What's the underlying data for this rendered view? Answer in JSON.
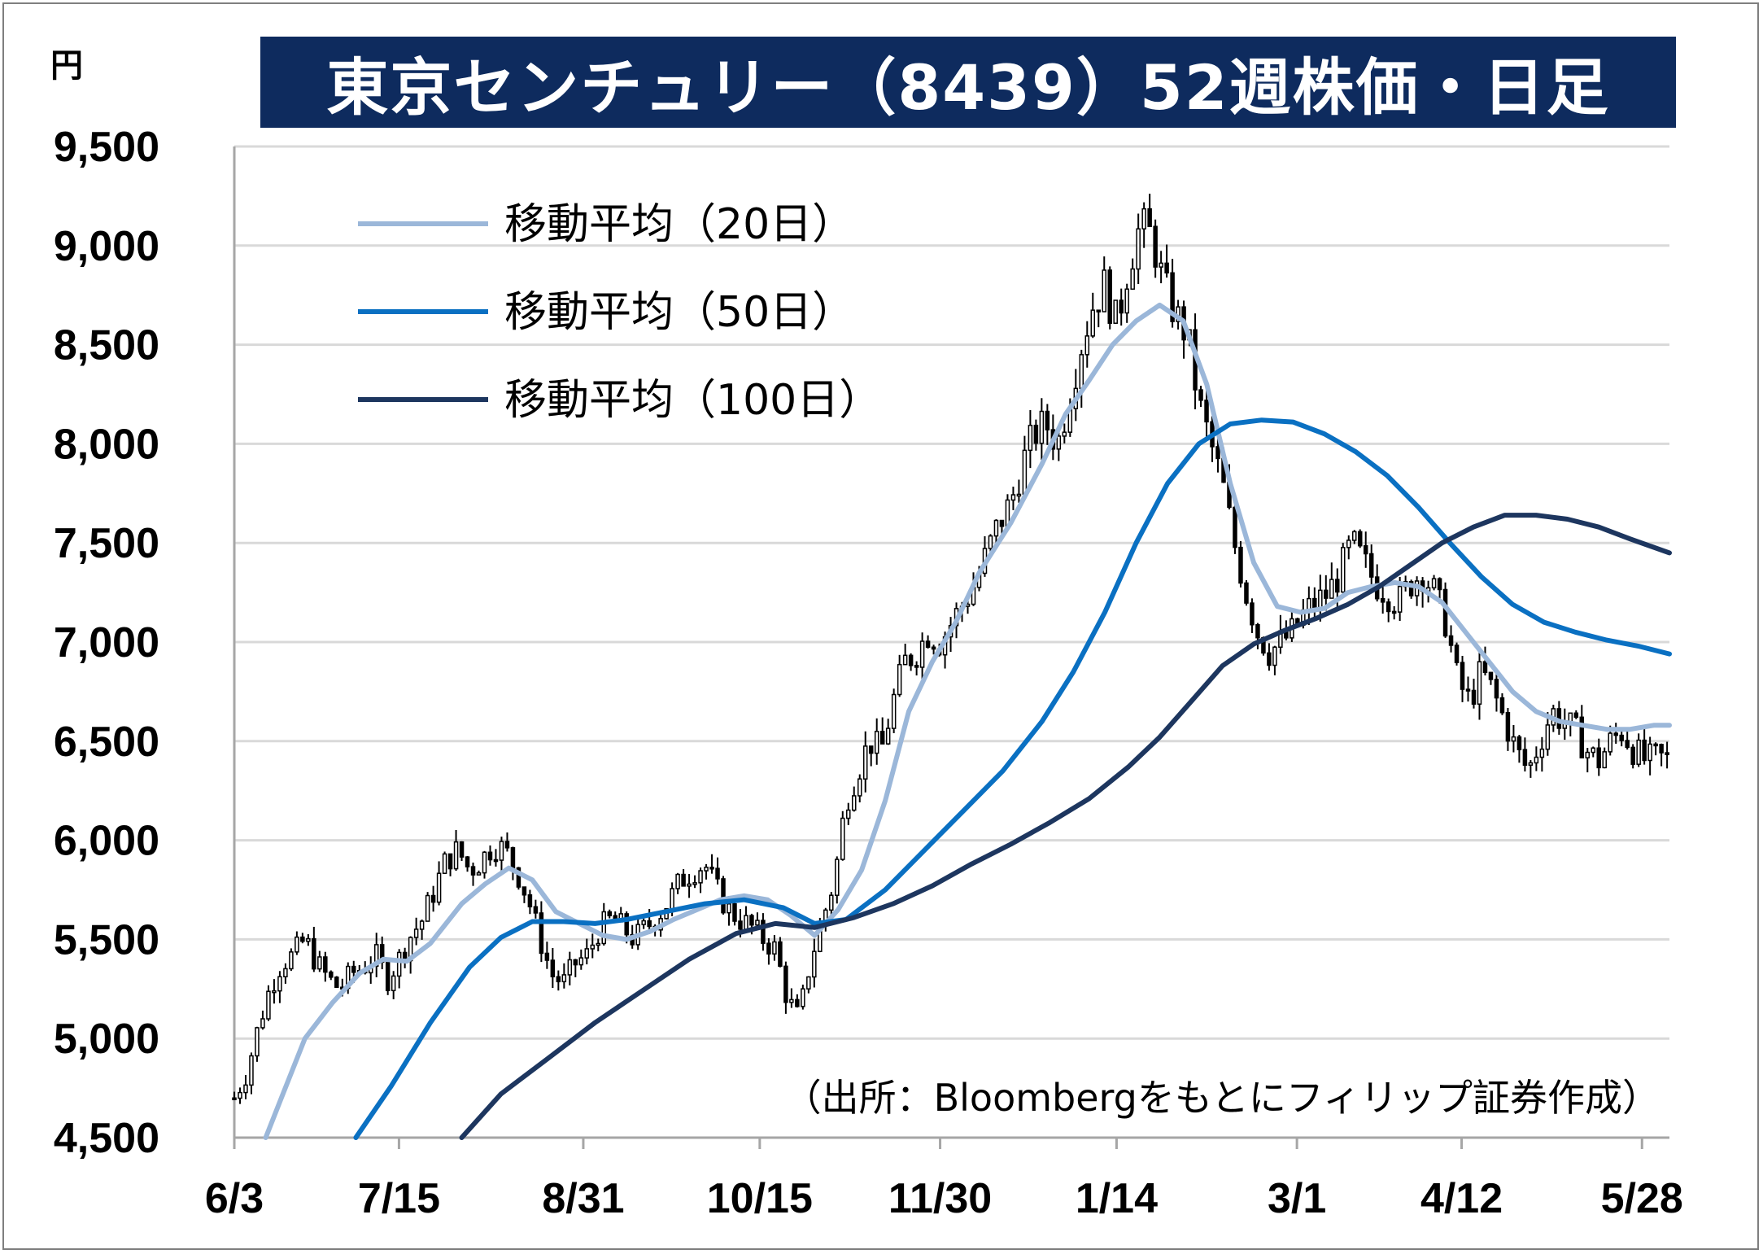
{
  "title": "東京センチュリー（8439）52週株価・日足",
  "unit_label": "円",
  "source": "（出所：Bloombergをもとにフィリップ証券作成）",
  "colors": {
    "title_bg": "#0e2b5e",
    "ma20": "#9bb7d9",
    "ma50": "#0a70c2",
    "ma100": "#1d365f",
    "candle": "#000000",
    "grid": "#d9d9d9",
    "axis": "#a6a6a6"
  },
  "chart_data": {
    "type": "candlestick",
    "ylim": [
      4500,
      9500
    ],
    "yticks": [
      4500,
      5000,
      5500,
      6000,
      6500,
      7000,
      7500,
      8000,
      8500,
      9000,
      9500
    ],
    "ytick_labels": [
      "4,500",
      "5,000",
      "5,500",
      "6,000",
      "6,500",
      "7,000",
      "7,500",
      "8,000",
      "8,500",
      "9,000",
      "9,500"
    ],
    "xlim_days": 366,
    "xticks": [
      {
        "label": "6/3",
        "day": 0
      },
      {
        "label": "7/15",
        "day": 42
      },
      {
        "label": "8/31",
        "day": 89
      },
      {
        "label": "10/15",
        "day": 134
      },
      {
        "label": "11/30",
        "day": 180
      },
      {
        "label": "1/14",
        "day": 225
      },
      {
        "label": "3/1",
        "day": 271
      },
      {
        "label": "4/12",
        "day": 313
      },
      {
        "label": "5/28",
        "day": 359
      }
    ],
    "legend": [
      {
        "key": "ma20",
        "label": "移動平均（20日）"
      },
      {
        "key": "ma50",
        "label": "移動平均（50日）"
      },
      {
        "key": "ma100",
        "label": "移動平均（100日）"
      }
    ],
    "series": [
      {
        "name": "移動平均（20日）",
        "key": "ma20",
        "points": [
          [
            8,
            4500
          ],
          [
            12,
            4700
          ],
          [
            18,
            5000
          ],
          [
            25,
            5180
          ],
          [
            32,
            5330
          ],
          [
            38,
            5400
          ],
          [
            44,
            5390
          ],
          [
            50,
            5480
          ],
          [
            58,
            5680
          ],
          [
            64,
            5780
          ],
          [
            70,
            5860
          ],
          [
            76,
            5800
          ],
          [
            82,
            5640
          ],
          [
            88,
            5580
          ],
          [
            94,
            5520
          ],
          [
            100,
            5500
          ],
          [
            106,
            5540
          ],
          [
            112,
            5600
          ],
          [
            118,
            5650
          ],
          [
            124,
            5700
          ],
          [
            130,
            5720
          ],
          [
            136,
            5700
          ],
          [
            142,
            5620
          ],
          [
            148,
            5520
          ],
          [
            154,
            5650
          ],
          [
            160,
            5850
          ],
          [
            166,
            6200
          ],
          [
            172,
            6650
          ],
          [
            178,
            6900
          ],
          [
            184,
            7100
          ],
          [
            190,
            7350
          ],
          [
            198,
            7600
          ],
          [
            206,
            7900
          ],
          [
            212,
            8150
          ],
          [
            218,
            8320
          ],
          [
            224,
            8500
          ],
          [
            230,
            8620
          ],
          [
            236,
            8700
          ],
          [
            242,
            8620
          ],
          [
            248,
            8300
          ],
          [
            254,
            7800
          ],
          [
            260,
            7400
          ],
          [
            266,
            7180
          ],
          [
            272,
            7150
          ],
          [
            278,
            7170
          ],
          [
            284,
            7250
          ],
          [
            290,
            7280
          ],
          [
            296,
            7300
          ],
          [
            302,
            7280
          ],
          [
            308,
            7200
          ],
          [
            314,
            7050
          ],
          [
            320,
            6900
          ],
          [
            326,
            6750
          ],
          [
            332,
            6650
          ],
          [
            338,
            6600
          ],
          [
            344,
            6580
          ],
          [
            350,
            6560
          ],
          [
            356,
            6560
          ],
          [
            362,
            6580
          ],
          [
            366,
            6580
          ]
        ]
      },
      {
        "name": "移動平均（50日）",
        "key": "ma50",
        "points": [
          [
            31,
            4500
          ],
          [
            40,
            4760
          ],
          [
            50,
            5080
          ],
          [
            60,
            5360
          ],
          [
            68,
            5510
          ],
          [
            76,
            5590
          ],
          [
            84,
            5590
          ],
          [
            92,
            5580
          ],
          [
            100,
            5600
          ],
          [
            110,
            5640
          ],
          [
            120,
            5680
          ],
          [
            130,
            5700
          ],
          [
            140,
            5660
          ],
          [
            148,
            5580
          ],
          [
            156,
            5600
          ],
          [
            166,
            5750
          ],
          [
            176,
            5950
          ],
          [
            186,
            6150
          ],
          [
            196,
            6350
          ],
          [
            206,
            6600
          ],
          [
            214,
            6850
          ],
          [
            222,
            7150
          ],
          [
            230,
            7500
          ],
          [
            238,
            7800
          ],
          [
            246,
            8000
          ],
          [
            254,
            8100
          ],
          [
            262,
            8120
          ],
          [
            270,
            8110
          ],
          [
            278,
            8050
          ],
          [
            286,
            7960
          ],
          [
            294,
            7840
          ],
          [
            302,
            7680
          ],
          [
            310,
            7500
          ],
          [
            318,
            7330
          ],
          [
            326,
            7190
          ],
          [
            334,
            7100
          ],
          [
            342,
            7050
          ],
          [
            350,
            7010
          ],
          [
            358,
            6980
          ],
          [
            366,
            6940
          ]
        ]
      },
      {
        "name": "移動平均（100日）",
        "key": "ma100",
        "points": [
          [
            58,
            4500
          ],
          [
            68,
            4720
          ],
          [
            80,
            4900
          ],
          [
            92,
            5080
          ],
          [
            104,
            5240
          ],
          [
            116,
            5400
          ],
          [
            128,
            5530
          ],
          [
            138,
            5580
          ],
          [
            148,
            5560
          ],
          [
            158,
            5610
          ],
          [
            168,
            5680
          ],
          [
            178,
            5770
          ],
          [
            188,
            5880
          ],
          [
            198,
            5980
          ],
          [
            208,
            6090
          ],
          [
            218,
            6210
          ],
          [
            228,
            6370
          ],
          [
            236,
            6520
          ],
          [
            244,
            6700
          ],
          [
            252,
            6880
          ],
          [
            260,
            6990
          ],
          [
            268,
            7060
          ],
          [
            276,
            7120
          ],
          [
            284,
            7190
          ],
          [
            292,
            7280
          ],
          [
            300,
            7390
          ],
          [
            308,
            7500
          ],
          [
            316,
            7580
          ],
          [
            324,
            7640
          ],
          [
            332,
            7640
          ],
          [
            340,
            7620
          ],
          [
            348,
            7580
          ],
          [
            356,
            7520
          ],
          [
            366,
            7450
          ]
        ]
      }
    ],
    "candles_ohlc_from": "reconstructed daily price path (close values)",
    "price_path": [
      [
        0,
        4700
      ],
      [
        3,
        4820
      ],
      [
        6,
        5050
      ],
      [
        9,
        5250
      ],
      [
        12,
        5380
      ],
      [
        15,
        5420
      ],
      [
        18,
        5500
      ],
      [
        21,
        5380
      ],
      [
        24,
        5300
      ],
      [
        27,
        5250
      ],
      [
        30,
        5330
      ],
      [
        33,
        5360
      ],
      [
        36,
        5420
      ],
      [
        39,
        5300
      ],
      [
        42,
        5400
      ],
      [
        45,
        5520
      ],
      [
        48,
        5600
      ],
      [
        51,
        5750
      ],
      [
        54,
        5900
      ],
      [
        57,
        5950
      ],
      [
        60,
        5850
      ],
      [
        63,
        5900
      ],
      [
        66,
        5980
      ],
      [
        69,
        5950
      ],
      [
        72,
        5850
      ],
      [
        75,
        5700
      ],
      [
        78,
        5500
      ],
      [
        81,
        5320
      ],
      [
        84,
        5280
      ],
      [
        87,
        5380
      ],
      [
        90,
        5420
      ],
      [
        93,
        5550
      ],
      [
        96,
        5600
      ],
      [
        99,
        5560
      ],
      [
        102,
        5500
      ],
      [
        105,
        5560
      ],
      [
        108,
        5620
      ],
      [
        111,
        5700
      ],
      [
        114,
        5800
      ],
      [
        117,
        5850
      ],
      [
        120,
        5880
      ],
      [
        123,
        5750
      ],
      [
        126,
        5650
      ],
      [
        129,
        5600
      ],
      [
        132,
        5560
      ],
      [
        135,
        5500
      ],
      [
        138,
        5450
      ],
      [
        141,
        5200
      ],
      [
        144,
        5100
      ],
      [
        147,
        5400
      ],
      [
        150,
        5600
      ],
      [
        153,
        5800
      ],
      [
        156,
        6200
      ],
      [
        159,
        6350
      ],
      [
        162,
        6500
      ],
      [
        165,
        6450
      ],
      [
        168,
        6700
      ],
      [
        171,
        6900
      ],
      [
        174,
        6950
      ],
      [
        177,
        7050
      ],
      [
        180,
        7000
      ],
      [
        183,
        7100
      ],
      [
        186,
        7200
      ],
      [
        189,
        7300
      ],
      [
        192,
        7450
      ],
      [
        195,
        7600
      ],
      [
        198,
        7700
      ],
      [
        201,
        7900
      ],
      [
        204,
        8050
      ],
      [
        207,
        8100
      ],
      [
        210,
        8000
      ],
      [
        213,
        8250
      ],
      [
        216,
        8500
      ],
      [
        219,
        8700
      ],
      [
        222,
        8800
      ],
      [
        225,
        8600
      ],
      [
        228,
        8900
      ],
      [
        231,
        9100
      ],
      [
        234,
        9050
      ],
      [
        237,
        8800
      ],
      [
        240,
        8650
      ],
      [
        243,
        8550
      ],
      [
        246,
        8200
      ],
      [
        249,
        8000
      ],
      [
        252,
        7800
      ],
      [
        255,
        7500
      ],
      [
        258,
        7250
      ],
      [
        261,
        7050
      ],
      [
        264,
        6950
      ],
      [
        267,
        7000
      ],
      [
        270,
        7050
      ],
      [
        273,
        7150
      ],
      [
        276,
        7200
      ],
      [
        279,
        7250
      ],
      [
        282,
        7350
      ],
      [
        285,
        7500
      ],
      [
        288,
        7400
      ],
      [
        291,
        7300
      ],
      [
        294,
        7250
      ],
      [
        297,
        7200
      ],
      [
        300,
        7300
      ],
      [
        303,
        7350
      ],
      [
        306,
        7250
      ],
      [
        309,
        7100
      ],
      [
        312,
        6800
      ],
      [
        315,
        6700
      ],
      [
        318,
        6850
      ],
      [
        321,
        6750
      ],
      [
        324,
        6600
      ],
      [
        327,
        6450
      ],
      [
        330,
        6350
      ],
      [
        333,
        6500
      ],
      [
        336,
        6650
      ],
      [
        339,
        6600
      ],
      [
        342,
        6550
      ],
      [
        345,
        6450
      ],
      [
        348,
        6400
      ],
      [
        351,
        6500
      ],
      [
        354,
        6550
      ],
      [
        357,
        6450
      ],
      [
        360,
        6400
      ],
      [
        363,
        6420
      ],
      [
        366,
        6400
      ]
    ]
  }
}
